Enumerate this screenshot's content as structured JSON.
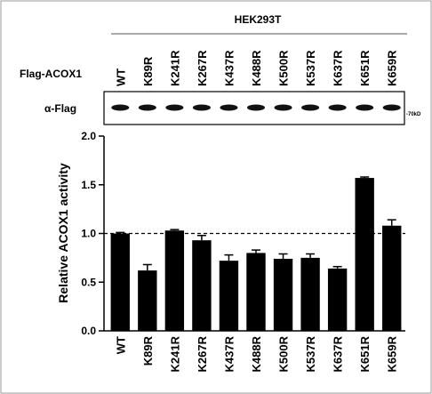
{
  "blot": {
    "cell_line": "HEK293T",
    "row_label": "Flag-ACOX1",
    "antibody": "α-Flag",
    "marker": "-70kD"
  },
  "chart_data": {
    "type": "bar",
    "y_label": "Relative ACOX1 activity",
    "categories": [
      "WT",
      "K89R",
      "K241R",
      "K267R",
      "K437R",
      "K488R",
      "K500R",
      "K537R",
      "K637R",
      "K651R",
      "K659R"
    ],
    "values": [
      1.0,
      0.62,
      1.03,
      0.93,
      0.72,
      0.8,
      0.74,
      0.75,
      0.64,
      1.57,
      1.08
    ],
    "errors": [
      0.01,
      0.06,
      0.01,
      0.05,
      0.06,
      0.03,
      0.05,
      0.04,
      0.02,
      0.01,
      0.06
    ],
    "color": "#000000",
    "reference_line": 1.0,
    "ylim": [
      0,
      2
    ],
    "yticks": [
      {
        "value": 0,
        "label": "0.0"
      },
      {
        "value": 0.5,
        "label": "0.5"
      },
      {
        "value": 1,
        "label": "1.0"
      },
      {
        "value": 1.5,
        "label": "1.5"
      },
      {
        "value": 2,
        "label": "2.0"
      }
    ]
  }
}
